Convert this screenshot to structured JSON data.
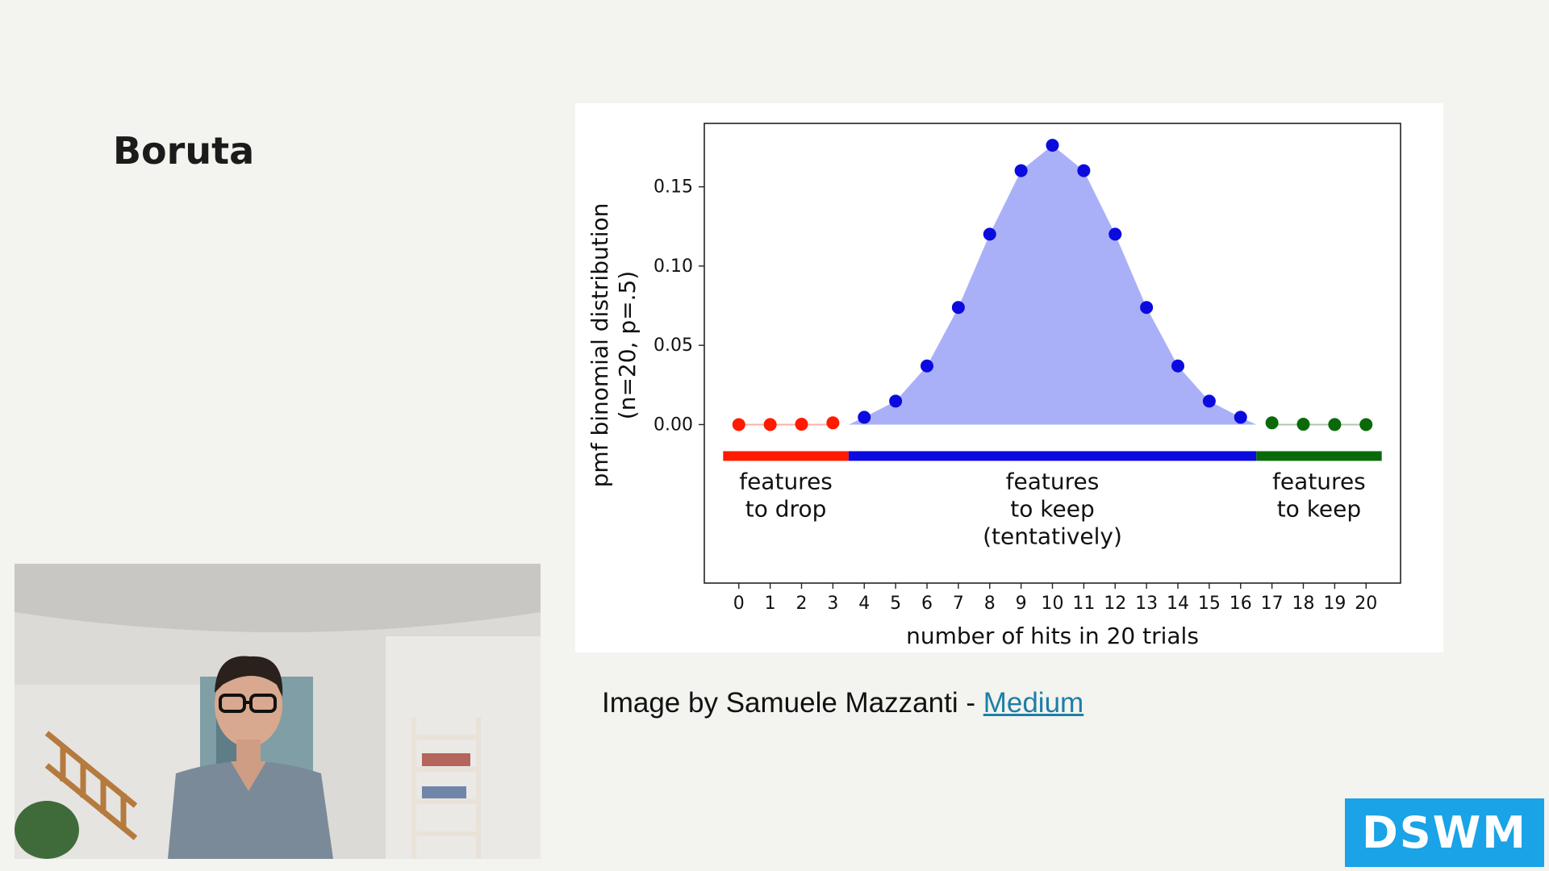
{
  "slide": {
    "title": "Boruta",
    "credit_text": "Image by Samuele Mazzanti - ",
    "credit_link": "Medium",
    "logo": "DSWM"
  },
  "chart_data": {
    "type": "scatter",
    "xlabel": "number of hits in 20 trials",
    "ylabel_lines": [
      "pmf binomial distribution",
      "(n=20, p=.5)"
    ],
    "ylim": [
      -0.1,
      0.19
    ],
    "xlim": [
      -1.1,
      21.1
    ],
    "x": [
      0,
      1,
      2,
      3,
      4,
      5,
      6,
      7,
      8,
      9,
      10,
      11,
      12,
      13,
      14,
      15,
      16,
      17,
      18,
      19,
      20
    ],
    "values": [
      1e-06,
      2e-05,
      0.0002,
      0.0011,
      0.0046,
      0.0148,
      0.037,
      0.0739,
      0.1201,
      0.1602,
      0.1762,
      0.1602,
      0.1201,
      0.0739,
      0.037,
      0.0148,
      0.0046,
      0.0011,
      0.0002,
      2e-05,
      1e-06
    ],
    "yticks": [
      0.0,
      0.05,
      0.1,
      0.15
    ],
    "ytick_labels": [
      "0.00",
      "0.05",
      "0.10",
      "0.15"
    ],
    "xtick_labels": [
      "0",
      "1",
      "2",
      "3",
      "4",
      "5",
      "6",
      "7",
      "8",
      "9",
      "10",
      "11",
      "12",
      "13",
      "14",
      "15",
      "16",
      "17",
      "18",
      "19",
      "20"
    ],
    "fill_range": [
      3.5,
      16.5
    ],
    "fill_color": "#aab0f8",
    "regions": [
      {
        "from": -0.5,
        "to": 3.5,
        "color": "#ff1a00",
        "label_lines": [
          "features",
          "to drop"
        ]
      },
      {
        "from": 3.5,
        "to": 16.5,
        "color": "#0b0bdf",
        "label_lines": [
          "features",
          "to keep",
          "(tentatively)"
        ]
      },
      {
        "from": 16.5,
        "to": 20.5,
        "color": "#0a6a0a",
        "label_lines": [
          "features",
          "to keep"
        ]
      }
    ],
    "grid": false,
    "legend": "none"
  }
}
